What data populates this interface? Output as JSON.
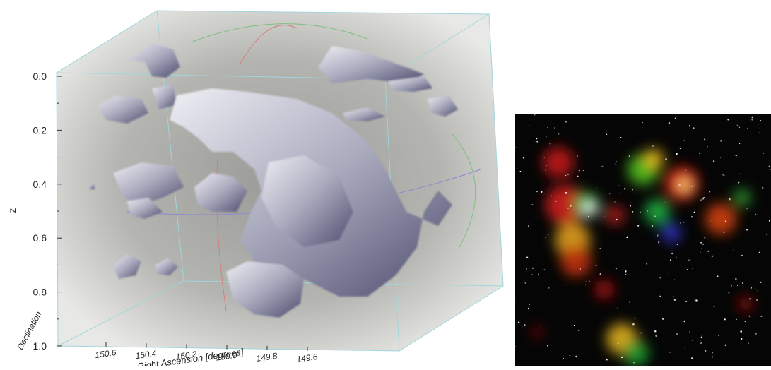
{
  "axes": {
    "z_label": "z",
    "z_ticks": [
      "0.0",
      "0.2",
      "0.4",
      "0.6",
      "0.8",
      "1.0"
    ],
    "x_label": "Right Ascension [degrees]",
    "x_ticks": [
      "150.6",
      "150.4",
      "150.2",
      "150.0",
      "149.8",
      "149.6"
    ],
    "depth_label": "Declination"
  }
}
